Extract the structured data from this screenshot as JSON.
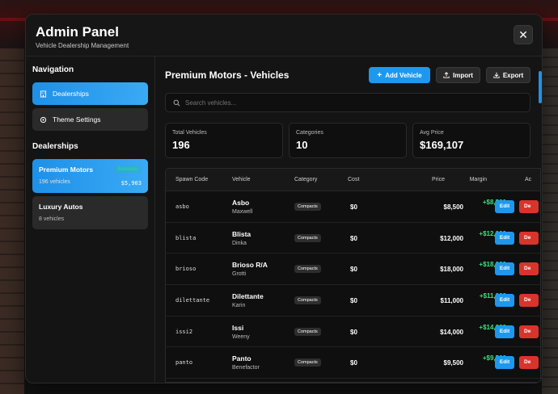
{
  "header": {
    "title": "Admin Panel",
    "subtitle": "Vehicle Dealership Management",
    "close_label": "✕"
  },
  "sidebar": {
    "nav_heading": "Navigation",
    "nav_items": [
      {
        "label": "Dealerships",
        "icon": "building-icon",
        "active": true
      },
      {
        "label": "Theme Settings",
        "icon": "gear-icon",
        "active": false
      }
    ],
    "dealers_heading": "Dealerships",
    "dealers": [
      {
        "name": "Premium Motors",
        "count": "196 vehicles",
        "badge": "Business",
        "price": "$5,903",
        "active": true
      },
      {
        "name": "Luxury Autos",
        "count": "8 vehicles",
        "badge": "",
        "price": "",
        "active": false
      }
    ]
  },
  "main": {
    "title": "Premium Motors - Vehicles",
    "add_label": "Add Vehicle",
    "import_label": "Import",
    "export_label": "Export",
    "search_placeholder": "Search vehicles...",
    "stats": [
      {
        "label": "Total Vehicles",
        "value": "196"
      },
      {
        "label": "Categories",
        "value": "10"
      },
      {
        "label": "Avg Price",
        "value": "$169,107"
      }
    ],
    "table": {
      "columns": [
        "Spawn Code",
        "Vehicle",
        "Category",
        "Cost",
        "Price",
        "Margin",
        "Ac"
      ],
      "rows": [
        {
          "spawn": "asbo",
          "name": "Asbo",
          "make": "Maxwell",
          "category": "Compacts",
          "cost": "$0",
          "price": "$8,500",
          "margin": "+$8,500",
          "pct": "+0%",
          "edit": "Edit",
          "del": "De"
        },
        {
          "spawn": "blista",
          "name": "Blista",
          "make": "Dinka",
          "category": "Compacts",
          "cost": "$0",
          "price": "$12,000",
          "margin": "+$12,000",
          "pct": "+0%",
          "edit": "Edit",
          "del": "De"
        },
        {
          "spawn": "brioso",
          "name": "Brioso R/A",
          "make": "Grotti",
          "category": "Compacts",
          "cost": "$0",
          "price": "$18,000",
          "margin": "+$18,000",
          "pct": "+0%",
          "edit": "Edit",
          "del": "De"
        },
        {
          "spawn": "dilettante",
          "name": "Dilettante",
          "make": "Karin",
          "category": "Compacts",
          "cost": "$0",
          "price": "$11,000",
          "margin": "+$11,000",
          "pct": "+0%",
          "edit": "Edit",
          "del": "De"
        },
        {
          "spawn": "issi2",
          "name": "Issi",
          "make": "Weeny",
          "category": "Compacts",
          "cost": "$0",
          "price": "$14,000",
          "margin": "+$14,000",
          "pct": "+0%",
          "edit": "Edit",
          "del": "De"
        },
        {
          "spawn": "panto",
          "name": "Panto",
          "make": "Benefactor",
          "category": "Compacts",
          "cost": "$0",
          "price": "$9,500",
          "margin": "+$9,500",
          "pct": "+0%",
          "edit": "Edit",
          "del": "De"
        }
      ]
    }
  },
  "colors": {
    "accent": "#1e98ee",
    "danger": "#d9342b",
    "positive": "#3ee07a"
  }
}
